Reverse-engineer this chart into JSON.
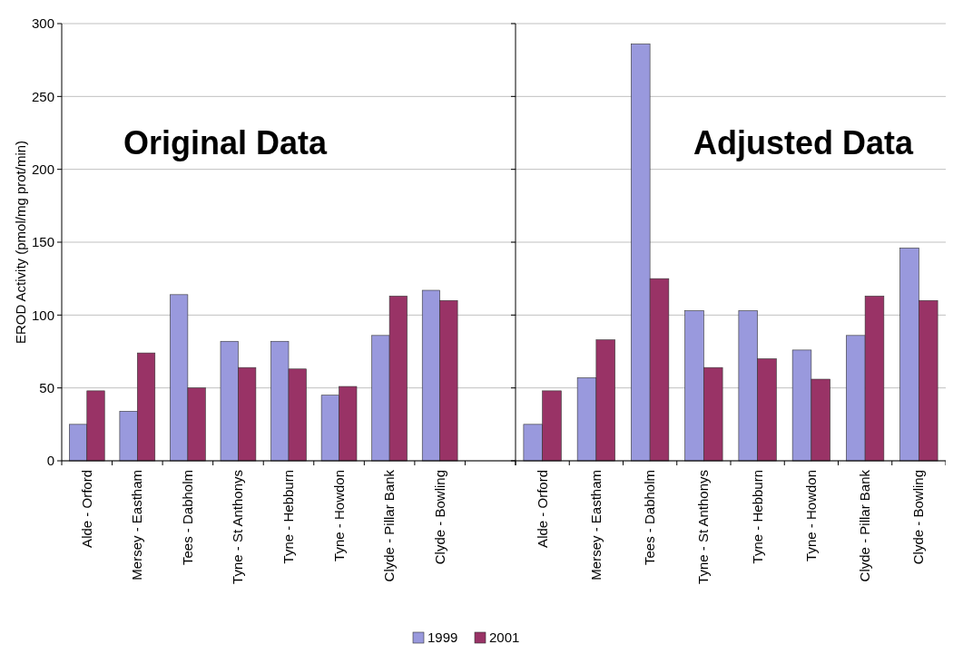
{
  "chart_data": [
    {
      "type": "bar",
      "ylabel": "EROD Activity (pmol/mg prot/min)",
      "annotations": [
        "Original Data"
      ],
      "categories": [
        "Alde - Orford",
        "Mersey - Eastham",
        "Tees - Dabholm",
        "Tyne - St Anthonys",
        "Tyne - Hebburn",
        "Tyne - Howdon",
        "Clyde - Pillar Bank",
        "Clyde - Bowling",
        null
      ],
      "series": [
        {
          "name": "1999",
          "color": "#9999dd",
          "values": [
            25,
            34,
            114,
            82,
            82,
            45,
            86,
            117,
            null
          ]
        },
        {
          "name": "2001",
          "color": "#993366",
          "values": [
            48,
            74,
            50,
            64,
            63,
            51,
            113,
            110,
            null
          ]
        }
      ],
      "ylim": [
        0,
        300
      ],
      "yticks": [
        0,
        50,
        100,
        150,
        200,
        250,
        300
      ],
      "grid": "y",
      "legend": "bottom"
    },
    {
      "type": "bar",
      "annotations": [
        "Adjusted Data"
      ],
      "categories": [
        "Alde - Orford",
        "Mersey - Eastham",
        "Tees - Dabholm",
        "Tyne - St Anthonys",
        "Tyne - Hebburn",
        "Tyne - Howdon",
        "Clyde - Pillar Bank",
        "Clyde - Bowling"
      ],
      "series": [
        {
          "color": "#9999dd",
          "values": [
            25,
            57,
            286,
            103,
            103,
            76,
            86,
            146
          ]
        },
        {
          "color": "#993366",
          "values": [
            48,
            83,
            125,
            64,
            70,
            56,
            113,
            110
          ]
        }
      ],
      "ylim": [
        0,
        300
      ],
      "yticks": [
        0,
        50,
        100,
        150,
        200,
        250,
        300
      ],
      "grid": "y",
      "tick_labels": "x"
    }
  ]
}
